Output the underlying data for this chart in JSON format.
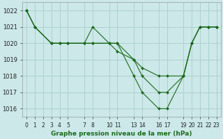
{
  "title": "Graphe pression niveau de la mer (hPa)",
  "bg_color": "#cce8e8",
  "grid_color": "#aacccc",
  "line_color": "#1a6b1a",
  "marker_color": "#1a6b1a",
  "ylim": [
    1015.5,
    1022.5
  ],
  "yticks": [
    1016,
    1017,
    1018,
    1019,
    1020,
    1021,
    1022
  ],
  "xlim": [
    -0.5,
    23.5
  ],
  "xtick_positions": [
    0,
    1,
    2,
    3,
    4,
    5,
    7,
    8,
    10,
    11,
    13,
    14,
    16,
    17,
    19,
    20,
    21,
    22,
    23
  ],
  "xtick_labels": [
    "0",
    "1",
    "2",
    "3",
    "4",
    "5",
    "7",
    "8",
    "10",
    "11",
    "13",
    "14",
    "16",
    "17",
    "19",
    "20",
    "21",
    "22",
    "23"
  ],
  "series": [
    {
      "x": [
        0,
        1,
        3,
        4,
        5,
        7,
        8,
        10,
        11,
        13,
        14,
        16,
        17,
        19,
        20,
        21,
        22,
        23
      ],
      "y": [
        1022,
        1021,
        1020,
        1020,
        1020,
        1020,
        1021,
        1020,
        1020,
        1018,
        1017,
        1016,
        1016,
        1018,
        1020,
        1021,
        1021,
        1021
      ]
    },
    {
      "x": [
        0,
        1,
        3,
        4,
        5,
        7,
        8,
        10,
        11,
        13,
        14,
        16,
        17,
        19,
        20,
        21,
        22,
        23
      ],
      "y": [
        1022,
        1021,
        1020,
        1020,
        1020,
        1020,
        1020,
        1020,
        1020,
        1019,
        1018.5,
        1018,
        1018,
        1018,
        1020,
        1021,
        1021,
        1021
      ]
    },
    {
      "x": [
        0,
        1,
        3,
        4,
        5,
        7,
        8,
        10,
        11,
        13,
        14,
        16,
        17,
        19,
        20,
        21,
        22,
        23
      ],
      "y": [
        1022,
        1021,
        1020,
        1020,
        1020,
        1020,
        1020,
        1020,
        1019.5,
        1019,
        1018,
        1017,
        1017,
        1018,
        1020,
        1021,
        1021,
        1021
      ]
    }
  ],
  "title_fontsize": 6.5,
  "tick_fontsize": 5.5,
  "ytick_fontsize": 6.0
}
